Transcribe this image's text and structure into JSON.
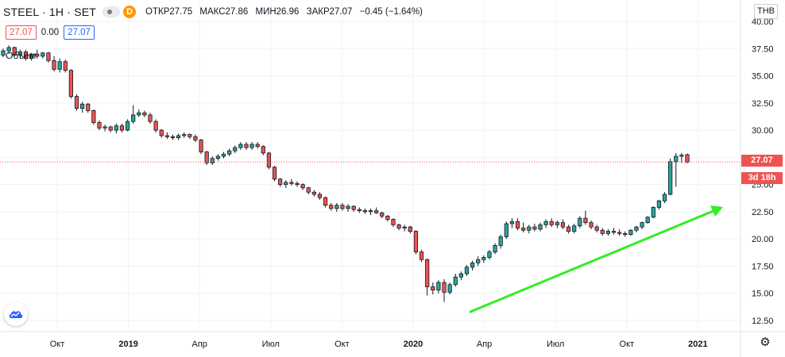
{
  "header": {
    "symbol": "STEEL · 1H · SET",
    "badge": "D",
    "open_label": "ОТКР",
    "open": "27.75",
    "high_label": "МАКС",
    "high": "27.86",
    "low_label": "МИН",
    "low": "26.96",
    "close_label": "ЗАКР",
    "close": "27.07",
    "change": "−0.45 (−1.64%)"
  },
  "quote_row": {
    "bid": "27.07",
    "spread": "0.00",
    "ask": "27.07"
  },
  "volume_label": "Объем",
  "currency": "THB",
  "price_tag": {
    "last": "27.07",
    "countdown": "3d 18h"
  },
  "colors": {
    "up": "#26a69a",
    "down": "#ef5350",
    "arrow": "#33ee22",
    "last_line": "#ef5350"
  },
  "icons": {
    "logo": "tradingview-cloud-icon",
    "settings": "gear-icon",
    "series_toggle": "eye-dot-icon"
  },
  "chart_data": {
    "type": "candlestick",
    "yaxis_ticks": [
      "40.00",
      "37.50",
      "35.00",
      "32.50",
      "30.00",
      "27.50",
      "25.00",
      "22.50",
      "20.00",
      "17.50",
      "15.00",
      "12.50"
    ],
    "xaxis_ticks": [
      {
        "label": "Окт",
        "bold": false
      },
      {
        "label": "2019",
        "bold": true
      },
      {
        "label": "Апр",
        "bold": false
      },
      {
        "label": "Июл",
        "bold": false
      },
      {
        "label": "Окт",
        "bold": false
      },
      {
        "label": "2020",
        "bold": true
      },
      {
        "label": "Апр",
        "bold": false
      },
      {
        "label": "Июл",
        "bold": false
      },
      {
        "label": "Окт",
        "bold": false
      },
      {
        "label": "2021",
        "bold": true
      }
    ],
    "ylim": [
      11.5,
      40
    ],
    "last_price": 27.07,
    "candles": [
      [
        36.9,
        37.5,
        36.7,
        37.3
      ],
      [
        37.3,
        37.8,
        37.0,
        37.6
      ],
      [
        37.6,
        37.7,
        36.8,
        36.9
      ],
      [
        36.9,
        37.4,
        36.6,
        37.2
      ],
      [
        37.2,
        37.4,
        36.4,
        36.6
      ],
      [
        36.6,
        37.1,
        36.4,
        37.0
      ],
      [
        37.0,
        37.4,
        36.6,
        36.8
      ],
      [
        36.8,
        37.2,
        36.6,
        37.1
      ],
      [
        37.1,
        37.2,
        36.2,
        36.4
      ],
      [
        36.4,
        36.8,
        35.4,
        35.6
      ],
      [
        35.6,
        36.6,
        35.3,
        36.3
      ],
      [
        36.3,
        36.5,
        35.3,
        35.5
      ],
      [
        35.5,
        35.6,
        32.9,
        33.1
      ],
      [
        33.1,
        33.3,
        31.8,
        32.0
      ],
      [
        32.0,
        32.6,
        31.6,
        32.4
      ],
      [
        32.4,
        32.5,
        31.6,
        31.8
      ],
      [
        31.8,
        31.9,
        30.5,
        30.7
      ],
      [
        30.7,
        30.9,
        30.0,
        30.2
      ],
      [
        30.2,
        30.5,
        29.9,
        30.3
      ],
      [
        30.3,
        30.4,
        29.8,
        30.0
      ],
      [
        30.0,
        30.6,
        29.7,
        30.4
      ],
      [
        30.4,
        30.6,
        29.8,
        30.0
      ],
      [
        30.0,
        31.0,
        29.9,
        30.8
      ],
      [
        30.8,
        32.3,
        30.6,
        31.4
      ],
      [
        31.4,
        31.9,
        31.2,
        31.6
      ],
      [
        31.6,
        31.8,
        31.2,
        31.4
      ],
      [
        31.4,
        31.6,
        30.6,
        30.8
      ],
      [
        30.8,
        31.0,
        29.8,
        30.0
      ],
      [
        30.0,
        30.1,
        29.3,
        29.5
      ],
      [
        29.5,
        29.8,
        29.2,
        29.4
      ],
      [
        29.4,
        29.6,
        29.1,
        29.3
      ],
      [
        29.3,
        29.7,
        29.1,
        29.5
      ],
      [
        29.5,
        29.8,
        29.3,
        29.6
      ],
      [
        29.6,
        29.7,
        29.2,
        29.4
      ],
      [
        29.4,
        29.6,
        28.9,
        29.1
      ],
      [
        29.1,
        29.2,
        27.8,
        28.0
      ],
      [
        28.0,
        28.1,
        26.8,
        27.0
      ],
      [
        27.0,
        27.6,
        26.8,
        27.4
      ],
      [
        27.4,
        27.8,
        27.2,
        27.6
      ],
      [
        27.6,
        28.0,
        27.4,
        27.8
      ],
      [
        27.8,
        28.3,
        27.6,
        28.1
      ],
      [
        28.1,
        28.6,
        27.9,
        28.4
      ],
      [
        28.4,
        28.9,
        28.2,
        28.7
      ],
      [
        28.7,
        28.9,
        28.2,
        28.4
      ],
      [
        28.4,
        28.9,
        28.2,
        28.7
      ],
      [
        28.7,
        28.9,
        28.3,
        28.5
      ],
      [
        28.5,
        28.6,
        27.7,
        27.9
      ],
      [
        27.9,
        28.0,
        26.4,
        26.6
      ],
      [
        26.6,
        26.7,
        25.3,
        25.5
      ],
      [
        25.5,
        25.6,
        24.8,
        25.0
      ],
      [
        25.0,
        25.4,
        24.7,
        25.2
      ],
      [
        25.2,
        25.5,
        24.9,
        25.1
      ],
      [
        25.1,
        25.3,
        24.8,
        25.0
      ],
      [
        25.0,
        25.1,
        24.5,
        24.7
      ],
      [
        24.7,
        24.8,
        24.1,
        24.3
      ],
      [
        24.3,
        24.5,
        23.9,
        24.1
      ],
      [
        24.1,
        24.3,
        23.6,
        23.8
      ],
      [
        23.8,
        23.9,
        22.9,
        23.1
      ],
      [
        23.1,
        23.3,
        22.6,
        22.8
      ],
      [
        22.8,
        23.3,
        22.5,
        23.1
      ],
      [
        23.1,
        23.3,
        22.6,
        22.8
      ],
      [
        22.8,
        23.2,
        22.5,
        23.0
      ],
      [
        23.0,
        23.1,
        22.5,
        22.7
      ],
      [
        22.7,
        22.9,
        22.4,
        22.6
      ],
      [
        22.6,
        22.8,
        22.3,
        22.5
      ],
      [
        22.5,
        22.8,
        22.2,
        22.6
      ],
      [
        22.6,
        22.9,
        22.3,
        22.4
      ],
      [
        22.4,
        22.5,
        21.9,
        22.1
      ],
      [
        22.1,
        22.2,
        21.6,
        21.8
      ],
      [
        21.8,
        21.9,
        21.1,
        21.3
      ],
      [
        21.3,
        21.4,
        20.8,
        21.0
      ],
      [
        21.0,
        21.3,
        20.7,
        21.1
      ],
      [
        21.1,
        21.2,
        20.5,
        20.7
      ],
      [
        20.7,
        20.8,
        18.6,
        18.8
      ],
      [
        18.8,
        19.0,
        17.9,
        18.1
      ],
      [
        18.1,
        18.2,
        14.8,
        15.6
      ],
      [
        15.6,
        16.0,
        14.9,
        15.3
      ],
      [
        15.3,
        16.2,
        15.0,
        16.0
      ],
      [
        16.0,
        16.3,
        14.2,
        15.1
      ],
      [
        15.1,
        16.0,
        14.9,
        15.8
      ],
      [
        15.8,
        16.8,
        15.6,
        16.5
      ],
      [
        16.5,
        17.0,
        16.2,
        16.8
      ],
      [
        16.8,
        17.6,
        16.6,
        17.4
      ],
      [
        17.4,
        18.0,
        17.1,
        17.8
      ],
      [
        17.8,
        18.4,
        17.5,
        18.1
      ],
      [
        18.1,
        18.5,
        17.8,
        18.3
      ],
      [
        18.3,
        19.0,
        18.1,
        18.8
      ],
      [
        18.8,
        19.6,
        18.6,
        19.4
      ],
      [
        19.4,
        20.4,
        19.1,
        20.2
      ],
      [
        20.2,
        21.6,
        20.0,
        21.4
      ],
      [
        21.4,
        21.9,
        21.0,
        21.6
      ],
      [
        21.6,
        21.9,
        20.8,
        21.0
      ],
      [
        21.0,
        21.5,
        20.6,
        20.8
      ],
      [
        20.8,
        21.3,
        20.5,
        21.1
      ],
      [
        21.1,
        21.4,
        20.7,
        20.9
      ],
      [
        20.9,
        21.5,
        20.7,
        21.3
      ],
      [
        21.3,
        21.8,
        21.0,
        21.6
      ],
      [
        21.6,
        21.9,
        21.1,
        21.3
      ],
      [
        21.3,
        21.7,
        21.0,
        21.5
      ],
      [
        21.5,
        21.8,
        20.9,
        21.1
      ],
      [
        21.1,
        21.3,
        20.5,
        20.7
      ],
      [
        20.7,
        21.4,
        20.5,
        21.2
      ],
      [
        21.2,
        22.1,
        21.0,
        21.9
      ],
      [
        21.9,
        22.6,
        21.3,
        21.5
      ],
      [
        21.5,
        21.7,
        20.9,
        21.1
      ],
      [
        21.1,
        21.3,
        20.6,
        20.8
      ],
      [
        20.8,
        21.0,
        20.3,
        20.5
      ],
      [
        20.5,
        20.9,
        20.3,
        20.7
      ],
      [
        20.7,
        21.0,
        20.4,
        20.6
      ],
      [
        20.6,
        20.9,
        20.3,
        20.5
      ],
      [
        20.5,
        20.7,
        20.2,
        20.4
      ],
      [
        20.4,
        20.9,
        20.3,
        20.8
      ],
      [
        20.8,
        21.2,
        20.6,
        21.1
      ],
      [
        21.1,
        21.6,
        20.9,
        21.5
      ],
      [
        21.5,
        22.1,
        21.4,
        22.0
      ],
      [
        22.0,
        23.0,
        21.9,
        22.9
      ],
      [
        22.9,
        23.6,
        22.7,
        23.5
      ],
      [
        23.5,
        24.3,
        23.3,
        24.1
      ],
      [
        24.1,
        27.4,
        24.0,
        27.1
      ],
      [
        27.1,
        27.9,
        24.8,
        27.6
      ],
      [
        27.6,
        27.9,
        27.0,
        27.7
      ],
      [
        27.75,
        27.86,
        26.96,
        27.07
      ]
    ]
  }
}
